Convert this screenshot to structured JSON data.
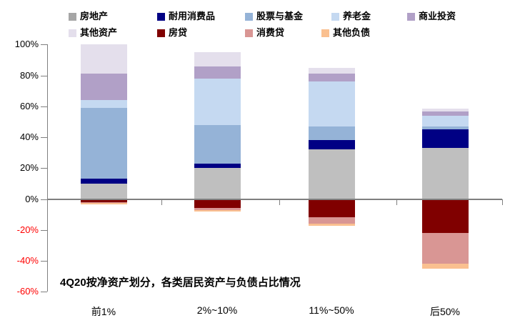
{
  "annotation": "4Q20按净资产划分，各类居民资产与负债占比情况",
  "legend": {
    "rows": [
      [
        {
          "id": "real-estate",
          "label": "房地产",
          "color": "#a6a6a6"
        },
        {
          "id": "durable-goods",
          "label": "耐用消费品",
          "color": "#000084"
        },
        {
          "id": "stocks-funds",
          "label": "股票与基金",
          "color": "#95b3d7"
        },
        {
          "id": "pension",
          "label": "养老金",
          "color": "#c5d9f1"
        },
        {
          "id": "business-investment",
          "label": "商业投资",
          "color": "#b1a0c7"
        }
      ],
      [
        {
          "id": "other-assets",
          "label": "其他资产",
          "color": "#e4dfec"
        },
        {
          "id": "mortgage",
          "label": "房贷",
          "color": "#800000"
        },
        {
          "id": "consumer-loans",
          "label": "消费贷",
          "color": "#d99694"
        },
        {
          "id": "other-liabilities",
          "label": "其他负债",
          "color": "#fac090"
        }
      ]
    ]
  },
  "chart_data": {
    "type": "bar",
    "stacked": true,
    "title": "4Q20按净资产划分，各类居民资产与负债占比情况",
    "xlabel": "",
    "ylabel": "",
    "legend_position": "top",
    "grid": false,
    "categories": [
      "前1%",
      "2%~10%",
      "11%~50%",
      "后50%"
    ],
    "y_axis": {
      "min": -60,
      "max": 100,
      "step": 20,
      "ticks": [
        100,
        80,
        60,
        40,
        20,
        0,
        -20,
        -40,
        -60
      ],
      "tick_labels": [
        "100%",
        "80%",
        "60%",
        "40%",
        "20%",
        "0%",
        "-20%",
        "-40%",
        "-60%"
      ],
      "positive_label_color": "#000000",
      "negative_label_color": "#ff0000"
    },
    "series": [
      {
        "id": "real-estate",
        "name": "房地产",
        "color": "#bfbfbf",
        "kind": "asset",
        "values": [
          10,
          20,
          32,
          33
        ]
      },
      {
        "id": "durable-goods",
        "name": "耐用消费品",
        "color": "#000084",
        "kind": "asset",
        "values": [
          3,
          3,
          6,
          12
        ]
      },
      {
        "id": "stocks-funds",
        "name": "股票与基金",
        "color": "#95b3d7",
        "kind": "asset",
        "values": [
          46,
          25,
          9,
          2
        ]
      },
      {
        "id": "pension",
        "name": "养老金",
        "color": "#c5d9f1",
        "kind": "asset",
        "values": [
          5,
          30,
          29,
          7
        ]
      },
      {
        "id": "business-investment",
        "name": "商业投资",
        "color": "#b1a0c7",
        "kind": "asset",
        "values": [
          17,
          8,
          5,
          2.5
        ]
      },
      {
        "id": "other-assets",
        "name": "其他资产",
        "color": "#e4dfec",
        "kind": "asset",
        "values": [
          19,
          9,
          4,
          2
        ]
      },
      {
        "id": "mortgage",
        "name": "房贷",
        "color": "#800000",
        "kind": "liability",
        "values": [
          -2,
          -6,
          -12,
          -22
        ]
      },
      {
        "id": "consumer-loans",
        "name": "消费贷",
        "color": "#d99694",
        "kind": "liability",
        "values": [
          -0.5,
          -1,
          -4,
          -20
        ]
      },
      {
        "id": "other-liabilities",
        "name": "其他负债",
        "color": "#fac090",
        "kind": "liability",
        "values": [
          -1,
          -1,
          -1.5,
          -3
        ]
      }
    ]
  }
}
